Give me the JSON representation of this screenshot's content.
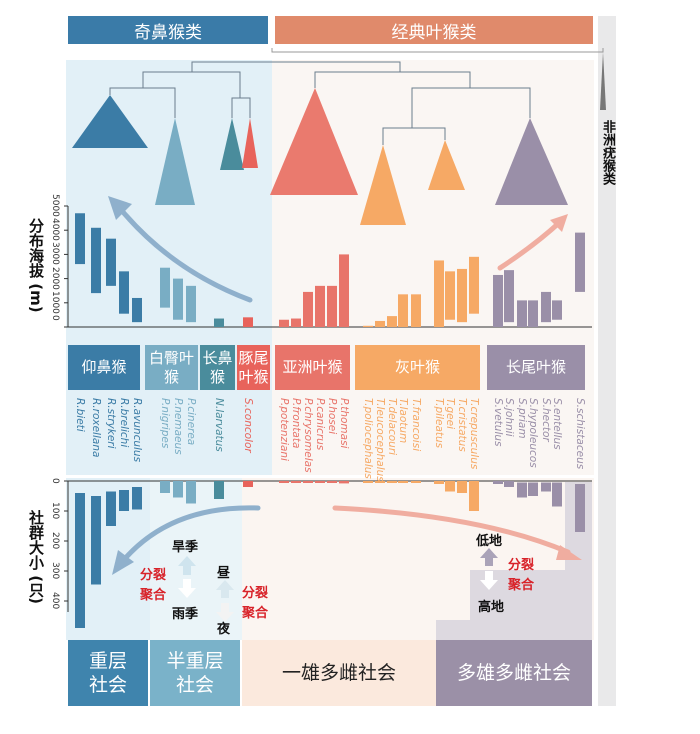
{
  "headers": {
    "odd_nosed": "奇鼻猴类",
    "classic_langurs": "经典叶猴类",
    "african_colobines": "非洲疣猴类"
  },
  "axes": {
    "elevation_label": "分布海拔 (m)",
    "elevation_ticks": [
      "0",
      "1000",
      "2000",
      "3000",
      "4000",
      "5000"
    ],
    "group_size_label": "社群大小 (只)",
    "group_size_ticks": [
      "0",
      "100",
      "200",
      "300",
      "400"
    ]
  },
  "genera": [
    {
      "name": "仰鼻猴",
      "color": "#3b7ca6"
    },
    {
      "name": "白臀叶猴",
      "color": "#79adc4"
    },
    {
      "name": "长鼻猴",
      "color": "#4a8c9c"
    },
    {
      "name": "豚尾叶猴",
      "color": "#e8635b"
    },
    {
      "name": "亚洲叶猴",
      "color": "#e8746a"
    },
    {
      "name": "灰叶猴",
      "color": "#f6a965"
    },
    {
      "name": "长尾叶猴",
      "color": "#9a8fa8"
    }
  ],
  "annotations": {
    "dry_season": "旱季",
    "rainy_season": "雨季",
    "day": "昼",
    "night": "夜",
    "fission": "分裂",
    "fusion": "聚合",
    "lowland": "低地",
    "highland": "高地"
  },
  "social_systems": [
    {
      "name": "重层\n社会",
      "color": "#3f84ad"
    },
    {
      "name": "半重层\n社会",
      "color": "#7ab2c9"
    },
    {
      "name": "一雄多雌社会",
      "color": "#fbe9dd"
    },
    {
      "name": "多雄多雌社会",
      "color": "#9b90a7"
    }
  ],
  "chart_data": {
    "type": "bar",
    "elevation_ylim": [
      0,
      5000
    ],
    "group_size_ylim": [
      0,
      450
    ],
    "species": [
      {
        "name": "R.bieti",
        "genus": 0,
        "elevation": [
          2600,
          4700
        ],
        "group_size": [
          40,
          490
        ]
      },
      {
        "name": "R.roxellana",
        "genus": 0,
        "elevation": [
          1400,
          4100
        ],
        "group_size": [
          50,
          345
        ]
      },
      {
        "name": "R.strykeri",
        "genus": 0,
        "elevation": [
          1700,
          3650
        ],
        "group_size": [
          35,
          150
        ]
      },
      {
        "name": "R.brelichi",
        "genus": 0,
        "elevation": [
          550,
          2300
        ],
        "group_size": [
          30,
          100
        ]
      },
      {
        "name": "R.avunculus",
        "genus": 0,
        "elevation": [
          200,
          1200
        ],
        "group_size": [
          20,
          95
        ]
      },
      {
        "name": "P.nigripes",
        "genus": 1,
        "elevation": [
          800,
          2450
        ],
        "group_size": [
          0,
          40
        ]
      },
      {
        "name": "P.nemaeus",
        "genus": 1,
        "elevation": [
          300,
          2000
        ],
        "group_size": [
          0,
          55
        ]
      },
      {
        "name": "P.cinerea",
        "genus": 1,
        "elevation": [
          200,
          1700
        ],
        "group_size": [
          0,
          75
        ]
      },
      {
        "name": "N.larvatus",
        "genus": 2,
        "elevation": [
          0,
          350
        ],
        "group_size": [
          0,
          60
        ]
      },
      {
        "name": "S.concolor",
        "genus": 3,
        "elevation": [
          0,
          400
        ],
        "group_size": [
          0,
          20
        ]
      },
      {
        "name": "P.potenziani",
        "genus": 4,
        "elevation": [
          0,
          300
        ],
        "group_size": [
          0,
          5
        ]
      },
      {
        "name": "P.frontata",
        "genus": 4,
        "elevation": [
          0,
          350
        ],
        "group_size": [
          0,
          5
        ]
      },
      {
        "name": "P.chrysomelas",
        "genus": 4,
        "elevation": [
          0,
          1450
        ],
        "group_size": [
          0,
          5
        ]
      },
      {
        "name": "P.canicrus",
        "genus": 4,
        "elevation": [
          0,
          1700
        ],
        "group_size": [
          0,
          5
        ]
      },
      {
        "name": "P.hosei",
        "genus": 4,
        "elevation": [
          0,
          1700
        ],
        "group_size": [
          0,
          5
        ]
      },
      {
        "name": "P.thomasi",
        "genus": 4,
        "elevation": [
          0,
          3000
        ],
        "group_size": [
          0,
          8
        ]
      },
      {
        "name": "T.poliocephalus",
        "genus": 5,
        "elevation": [
          0,
          50
        ],
        "group_size": [
          0,
          5
        ]
      },
      {
        "name": "T.leucocephalus",
        "genus": 5,
        "elevation": [
          0,
          250
        ],
        "group_size": [
          0,
          5
        ]
      },
      {
        "name": "T.delacouri",
        "genus": 5,
        "elevation": [
          0,
          450
        ],
        "group_size": [
          0,
          5
        ]
      },
      {
        "name": "T.laotum",
        "genus": 5,
        "elevation": [
          0,
          1350
        ],
        "group_size": [
          0,
          5
        ]
      },
      {
        "name": "T.francoisi",
        "genus": 5,
        "elevation": [
          0,
          1350
        ],
        "group_size": [
          0,
          5
        ]
      },
      {
        "name": "T.pileatus",
        "genus": 5,
        "elevation": [
          0,
          2750
        ],
        "group_size": [
          0,
          10
        ]
      },
      {
        "name": "T.geei",
        "genus": 5,
        "elevation": [
          300,
          2300
        ],
        "group_size": [
          0,
          35
        ]
      },
      {
        "name": "T.cristatus",
        "genus": 5,
        "elevation": [
          200,
          2400
        ],
        "group_size": [
          0,
          40
        ]
      },
      {
        "name": "T.crepusculus",
        "genus": 5,
        "elevation": [
          550,
          2900
        ],
        "group_size": [
          0,
          100
        ]
      },
      {
        "name": "S.vetulus",
        "genus": 6,
        "elevation": [
          0,
          2150
        ],
        "group_size": [
          0,
          10
        ]
      },
      {
        "name": "S.johnii",
        "genus": 6,
        "elevation": [
          200,
          2350
        ],
        "group_size": [
          0,
          20
        ]
      },
      {
        "name": "S.priam",
        "genus": 6,
        "elevation": [
          0,
          1100
        ],
        "group_size": [
          5,
          55
        ]
      },
      {
        "name": "S.hypoleucos",
        "genus": 6,
        "elevation": [
          0,
          1100
        ],
        "group_size": [
          5,
          50
        ]
      },
      {
        "name": "S.hector",
        "genus": 6,
        "elevation": [
          200,
          1450
        ],
        "group_size": [
          5,
          35
        ]
      },
      {
        "name": "S.entellus",
        "genus": 6,
        "elevation": [
          300,
          1100
        ],
        "group_size": [
          5,
          85
        ]
      },
      {
        "name": "S.schistaceus",
        "genus": 6,
        "elevation": [
          1450,
          3900
        ],
        "group_size": [
          10,
          170
        ]
      }
    ]
  }
}
